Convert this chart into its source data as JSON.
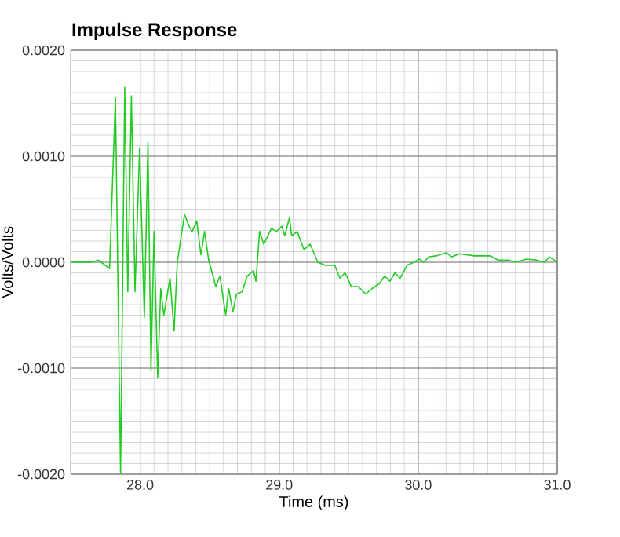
{
  "chart_data": {
    "type": "line",
    "title": "Impulse Response",
    "xlabel": "Time (ms)",
    "ylabel": "Volts/Volts",
    "xlim": [
      27.5,
      31.0
    ],
    "xticks": [
      {
        "value": 28.0,
        "label": "28.0"
      },
      {
        "value": 29.0,
        "label": "29.0"
      },
      {
        "value": 30.0,
        "label": "30.0"
      },
      {
        "value": 31.0,
        "label": "31.0"
      }
    ],
    "ylim": [
      -0.002,
      0.002
    ],
    "yticks": [
      {
        "value": -0.002,
        "label": "-0.0020"
      },
      {
        "value": -0.001,
        "label": "-0.0010"
      },
      {
        "value": 0,
        "label": "0.0000"
      },
      {
        "value": 0.001,
        "label": "0.0010"
      },
      {
        "value": 0.002,
        "label": "0.0020"
      }
    ],
    "grid": true,
    "marker": "none",
    "line_style": "solid",
    "x": [
      27.5,
      27.65,
      27.7,
      27.78,
      27.822,
      27.841,
      27.859,
      27.889,
      27.911,
      27.937,
      27.963,
      27.996,
      28.03,
      28.056,
      28.078,
      28.1,
      28.126,
      28.148,
      28.17,
      28.215,
      28.244,
      28.267,
      28.319,
      28.352,
      28.374,
      28.407,
      28.437,
      28.463,
      28.493,
      28.544,
      28.574,
      28.615,
      28.637,
      28.667,
      28.693,
      28.733,
      28.77,
      28.815,
      28.833,
      28.859,
      28.889,
      28.944,
      28.98,
      29.019,
      29.04,
      29.074,
      29.09,
      29.13,
      29.178,
      29.222,
      29.278,
      29.333,
      29.4,
      29.437,
      29.474,
      29.519,
      29.57,
      29.622,
      29.667,
      29.722,
      29.759,
      29.796,
      29.833,
      29.87,
      29.919,
      29.97,
      30.007,
      30.04,
      30.074,
      30.13,
      30.204,
      30.24,
      30.296,
      30.407,
      30.519,
      30.574,
      30.648,
      30.704,
      30.778,
      30.852,
      30.907,
      30.944,
      30.98,
      31.0
    ],
    "series": [
      {
        "color": "#22cc22",
        "values": [
          0,
          0,
          2e-05,
          -6e-05,
          0.00155,
          -0.00028,
          -0.002,
          0.00165,
          -0.00028,
          0.00157,
          -0.00028,
          0.00108,
          -0.00052,
          0.00113,
          -0.00102,
          0.00029,
          -0.00109,
          -0.00025,
          -0.0005,
          -0.00015,
          -0.00065,
          0,
          0.00045,
          0.00034,
          0.00029,
          0.00039,
          7e-05,
          0.00029,
          2e-05,
          -0.00023,
          -0.00013,
          -0.0005,
          -0.00025,
          -0.00047,
          -0.0003,
          -0.00028,
          -0.00013,
          -8e-05,
          -0.00018,
          0.00029,
          0.00017,
          0.00032,
          0.00029,
          0.00034,
          0.00025,
          0.00042,
          0.00025,
          0.00029,
          0.00012,
          0.00017,
          0,
          -3e-05,
          -3e-05,
          -0.00015,
          -0.0001,
          -0.00023,
          -0.00023,
          -0.0003,
          -0.00025,
          -0.0002,
          -0.00013,
          -0.00018,
          -0.0001,
          -0.00015,
          -3e-05,
          0,
          3e-05,
          0,
          5e-05,
          6e-05,
          9e-05,
          5e-05,
          8e-05,
          6e-05,
          6e-05,
          2e-05,
          2e-05,
          0,
          3e-05,
          2e-05,
          0,
          5e-05,
          2e-05,
          0
        ]
      }
    ]
  }
}
